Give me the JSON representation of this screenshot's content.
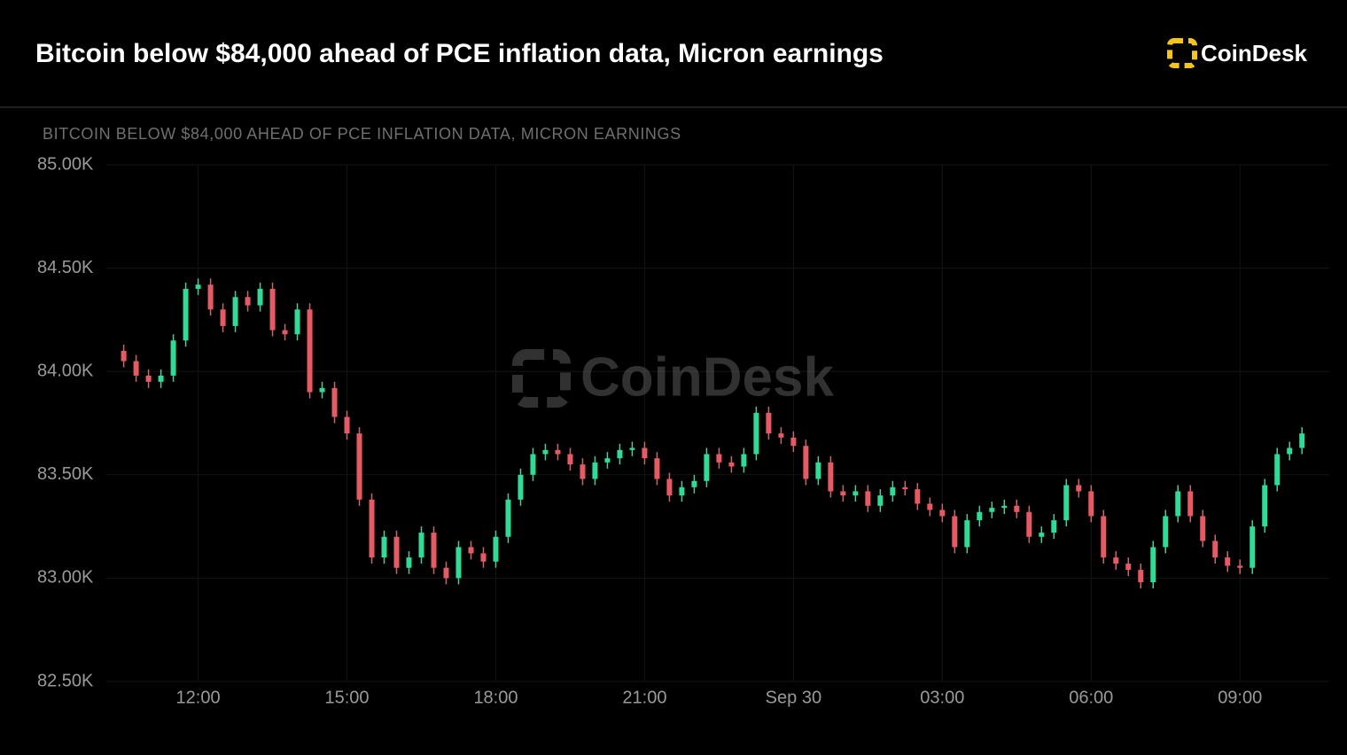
{
  "header": {
    "title": "Bitcoin below $84,000 ahead of PCE inflation data, Micron earnings",
    "logo": "CoinDesk"
  },
  "chart_data": {
    "type": "candlestick",
    "title": "BITCOIN BELOW $84,000 AHEAD OF PCE INFLATION DATA, MICRON EARNINGS",
    "watermark": "CoinDesk",
    "up_color": "#2fdc97",
    "down_color": "#e85a63",
    "grid": true,
    "xlim": [
      10.15,
      34.8
    ],
    "xticks": [
      {
        "value": 12,
        "label": "12:00"
      },
      {
        "value": 15,
        "label": "15:00"
      },
      {
        "value": 18,
        "label": "18:00"
      },
      {
        "value": 21,
        "label": "21:00"
      },
      {
        "value": 24,
        "label": "Sep 30"
      },
      {
        "value": 27,
        "label": "03:00"
      },
      {
        "value": 30,
        "label": "06:00"
      },
      {
        "value": 33,
        "label": "09:00"
      }
    ],
    "ylim": [
      82500,
      85000
    ],
    "yticks": [
      {
        "value": 82500,
        "label": "82.50K"
      },
      {
        "value": 83000,
        "label": "83.00K"
      },
      {
        "value": 83500,
        "label": "83.50K"
      },
      {
        "value": 84000,
        "label": "84.00K"
      },
      {
        "value": 84500,
        "label": "84.50K"
      },
      {
        "value": 85000,
        "label": "85.00K"
      }
    ],
    "x": [
      10.5,
      10.75,
      11,
      11.25,
      11.5,
      11.75,
      12,
      12.25,
      12.5,
      12.75,
      13,
      13.25,
      13.5,
      13.75,
      14,
      14.25,
      14.5,
      14.75,
      15,
      15.25,
      15.5,
      15.75,
      16,
      16.25,
      16.5,
      16.75,
      17,
      17.25,
      17.5,
      17.75,
      18,
      18.25,
      18.5,
      18.75,
      19,
      19.25,
      19.5,
      19.75,
      20,
      20.25,
      20.5,
      20.75,
      21,
      21.25,
      21.5,
      21.75,
      22,
      22.25,
      22.5,
      22.75,
      23,
      23.25,
      23.5,
      23.75,
      24,
      24.25,
      24.5,
      24.75,
      25,
      25.25,
      25.5,
      25.75,
      26,
      26.25,
      26.5,
      26.75,
      27,
      27.25,
      27.5,
      27.75,
      28,
      28.25,
      28.5,
      28.75,
      29,
      29.25,
      29.5,
      29.75,
      30,
      30.25,
      30.5,
      30.75,
      31,
      31.25,
      31.5,
      31.75,
      32,
      32.25,
      32.5,
      32.75,
      33,
      33.25,
      33.5,
      33.75,
      34,
      34.25
    ],
    "open": [
      84100,
      84050,
      83980,
      83950,
      83980,
      84150,
      84400,
      84420,
      84300,
      84220,
      84360,
      84320,
      84400,
      84200,
      84180,
      84300,
      83900,
      83920,
      83780,
      83700,
      83380,
      83100,
      83200,
      83050,
      83100,
      83220,
      83050,
      83000,
      83150,
      83120,
      83080,
      83200,
      83380,
      83500,
      83600,
      83620,
      83600,
      83550,
      83480,
      83560,
      83580,
      83620,
      83630,
      83580,
      83480,
      83400,
      83440,
      83470,
      83600,
      83560,
      83540,
      83600,
      83800,
      83700,
      83680,
      83640,
      83480,
      83560,
      83420,
      83400,
      83420,
      83350,
      83400,
      83440,
      83430,
      83360,
      83330,
      83300,
      83150,
      83280,
      83320,
      83340,
      83350,
      83320,
      83200,
      83220,
      83280,
      83450,
      83420,
      83300,
      83100,
      83070,
      83040,
      82980,
      83150,
      83300,
      83420,
      83300,
      83180,
      83100,
      83060,
      83050,
      83250,
      83450,
      83600,
      83630
    ],
    "high": [
      84130,
      84080,
      84010,
      84010,
      84180,
      84430,
      84450,
      84450,
      84330,
      84390,
      84390,
      84430,
      84430,
      84230,
      84330,
      84330,
      83950,
      83950,
      83810,
      83730,
      83410,
      83230,
      83230,
      83130,
      83250,
      83250,
      83080,
      83180,
      83180,
      83150,
      83230,
      83410,
      83530,
      83630,
      83650,
      83650,
      83630,
      83580,
      83590,
      83610,
      83650,
      83660,
      83660,
      83610,
      83510,
      83470,
      83500,
      83630,
      83630,
      83590,
      83630,
      83830,
      83830,
      83730,
      83710,
      83670,
      83590,
      83590,
      83450,
      83450,
      83450,
      83430,
      83470,
      83470,
      83460,
      83390,
      83360,
      83330,
      83310,
      83350,
      83370,
      83380,
      83380,
      83350,
      83250,
      83310,
      83480,
      83480,
      83450,
      83330,
      83130,
      83100,
      83070,
      83180,
      83330,
      83450,
      83450,
      83330,
      83210,
      83130,
      83090,
      83280,
      83480,
      83630,
      83660,
      83730
    ],
    "low": [
      84020,
      83950,
      83920,
      83920,
      83950,
      84120,
      84370,
      84270,
      84190,
      84190,
      84290,
      84290,
      84170,
      84150,
      84150,
      83870,
      83870,
      83750,
      83670,
      83350,
      83070,
      83070,
      83020,
      83020,
      83070,
      83020,
      82970,
      82970,
      83090,
      83050,
      83050,
      83170,
      83350,
      83470,
      83570,
      83570,
      83520,
      83450,
      83450,
      83530,
      83550,
      83590,
      83550,
      83450,
      83370,
      83370,
      83410,
      83440,
      83530,
      83510,
      83510,
      83570,
      83670,
      83650,
      83610,
      83450,
      83450,
      83390,
      83370,
      83370,
      83320,
      83320,
      83370,
      83400,
      83330,
      83300,
      83270,
      83120,
      83120,
      83250,
      83290,
      83310,
      83290,
      83170,
      83170,
      83190,
      83250,
      83390,
      83270,
      83070,
      83040,
      83010,
      82950,
      82950,
      83120,
      83270,
      83270,
      83150,
      83070,
      83030,
      83020,
      83020,
      83220,
      83420,
      83570,
      83600
    ],
    "close": [
      84050,
      83980,
      83950,
      83980,
      84150,
      84400,
      84420,
      84300,
      84220,
      84360,
      84320,
      84400,
      84200,
      84180,
      84300,
      83900,
      83920,
      83780,
      83700,
      83380,
      83100,
      83200,
      83050,
      83100,
      83220,
      83050,
      83000,
      83150,
      83120,
      83080,
      83200,
      83380,
      83500,
      83600,
      83620,
      83600,
      83550,
      83480,
      83560,
      83580,
      83620,
      83630,
      83580,
      83480,
      83400,
      83440,
      83470,
      83600,
      83560,
      83540,
      83600,
      83800,
      83700,
      83680,
      83640,
      83480,
      83560,
      83420,
      83400,
      83420,
      83350,
      83400,
      83440,
      83430,
      83360,
      83330,
      83300,
      83150,
      83280,
      83320,
      83340,
      83350,
      83320,
      83200,
      83220,
      83280,
      83450,
      83420,
      83300,
      83100,
      83070,
      83040,
      82980,
      83150,
      83300,
      83420,
      83300,
      83180,
      83100,
      83060,
      83050,
      83250,
      83450,
      83600,
      83630,
      83700
    ]
  }
}
